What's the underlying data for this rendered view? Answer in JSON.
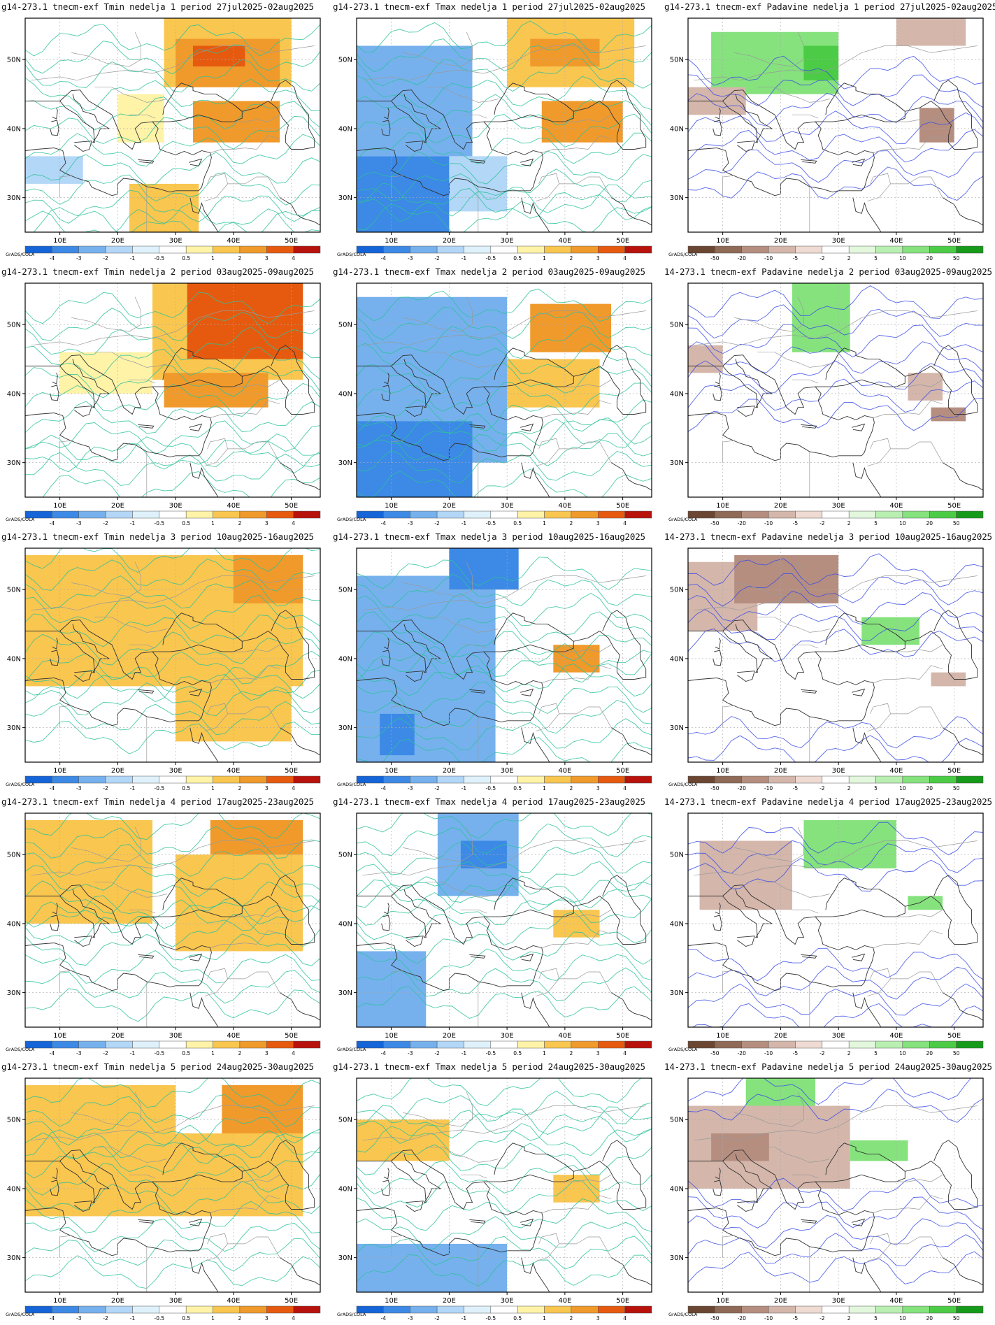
{
  "lat_labels": [
    "50N",
    "40N",
    "30N"
  ],
  "lon_labels": [
    "10E",
    "20E",
    "30E",
    "40E",
    "50E"
  ],
  "credit": "GrADS/COLA",
  "temp_scale": {
    "labels": [
      "-4",
      "-3",
      "-2",
      "-1",
      "-0.5",
      "0.5",
      "1",
      "2",
      "3",
      "4"
    ],
    "colors": [
      "#1565d8",
      "#3d89e6",
      "#76b1ee",
      "#b3d7f7",
      "#dff1fb",
      "#ffffff",
      "#fff3a8",
      "#f9c650",
      "#f09a2c",
      "#e65a0f",
      "#b8120d"
    ]
  },
  "precip_scale": {
    "labels": [
      "-50",
      "-20",
      "-10",
      "-5",
      "-2",
      "2",
      "5",
      "10",
      "20",
      "50"
    ],
    "colors": [
      "#6b4733",
      "#8e6a57",
      "#b58e80",
      "#d4b6ab",
      "#efdbd3",
      "#ffffff",
      "#e2f7dc",
      "#b9efb1",
      "#85e27d",
      "#4ccc46",
      "#169a1a"
    ]
  },
  "rows": [
    {
      "week": "1",
      "titles": [
        "g14-273.1 tnecm-exf Tmin nedelja 1 period 27jul2025-02aug2025",
        "g14-273.1 tnecm-exf Tmax nedelja 1 period 27jul2025-02aug2025",
        "g14-273.1 tnecm-exf Padavine nedelja 1 period 27jul2025-02aug2025"
      ]
    },
    {
      "week": "2",
      "titles": [
        "g14-273.1 tnecm-exf Tmin nedelja 2 period 03aug2025-09aug2025",
        "g14-273.1 tnecm-exf Tmax nedelja 2 period 03aug2025-09aug2025",
        "14-273.1 tnecm-exf Padavine nedelja 2 period 03aug2025-09aug2025"
      ]
    },
    {
      "week": "3",
      "titles": [
        "g14-273.1 tnecm-exf Tmin nedelja 3 period 10aug2025-16aug2025",
        "g14-273.1 tnecm-exf Tmax nedelja 3 period 10aug2025-16aug2025",
        "14-273.1 tnecm-exf Padavine nedelja 3 period 10aug2025-16aug2025"
      ]
    },
    {
      "week": "4",
      "titles": [
        "g14-273.1 tnecm-exf Tmin nedelja 4 period 17aug2025-23aug2025",
        "g14-273.1 tnecm-exf Tmax nedelja 4 period 17aug2025-23aug2025",
        "14-273.1 tnecm-exf Padavine nedelja 4 period 17aug2025-23aug2025"
      ]
    },
    {
      "week": "5",
      "titles": [
        "g14-273.1 tnecm-exf Tmin nedelja 5 period 24aug2025-30aug2025",
        "g14-273.1 tnecm-exf Tmax nedelja 5 period 24aug2025-30aug2025",
        "14-273.1 tnecm-exf Padavine nedelja 5 period 24aug2025-30aug2025"
      ]
    }
  ],
  "anomaly_regions": [
    [
      {
        "tmin": [
          {
            "c": 7,
            "lon": [
              28,
              50
            ],
            "lat": [
              46,
              56
            ]
          },
          {
            "c": 8,
            "lon": [
              30,
              48
            ],
            "lat": [
              46,
              53
            ]
          },
          {
            "c": 9,
            "lon": [
              33,
              42
            ],
            "lat": [
              49,
              52
            ]
          },
          {
            "c": 8,
            "lon": [
              33,
              48
            ],
            "lat": [
              38,
              44
            ]
          },
          {
            "c": 7,
            "lon": [
              22,
              34
            ],
            "lat": [
              25,
              32
            ]
          },
          {
            "c": 3,
            "lon": [
              4,
              14
            ],
            "lat": [
              32,
              36
            ]
          },
          {
            "c": 6,
            "lon": [
              20,
              28
            ],
            "lat": [
              38,
              45
            ]
          }
        ],
        "tmax": [
          {
            "c": 1,
            "lon": [
              4,
              20
            ],
            "lat": [
              25,
              36
            ]
          },
          {
            "c": 2,
            "lon": [
              4,
              24
            ],
            "lat": [
              36,
              52
            ]
          },
          {
            "c": 7,
            "lon": [
              30,
              52
            ],
            "lat": [
              46,
              56
            ]
          },
          {
            "c": 8,
            "lon": [
              34,
              46
            ],
            "lat": [
              49,
              53
            ]
          },
          {
            "c": 8,
            "lon": [
              36,
              50
            ],
            "lat": [
              38,
              44
            ]
          },
          {
            "c": 3,
            "lon": [
              20,
              30
            ],
            "lat": [
              28,
              36
            ]
          }
        ],
        "precip": [
          {
            "c": 8,
            "lon": [
              8,
              30
            ],
            "lat": [
              45,
              54
            ]
          },
          {
            "c": 9,
            "lon": [
              24,
              30
            ],
            "lat": [
              47,
              52
            ]
          },
          {
            "c": 3,
            "lon": [
              4,
              14
            ],
            "lat": [
              42,
              46
            ]
          },
          {
            "c": 2,
            "lon": [
              44,
              50
            ],
            "lat": [
              38,
              43
            ]
          },
          {
            "c": 3,
            "lon": [
              40,
              52
            ],
            "lat": [
              52,
              56
            ]
          }
        ]
      }
    ],
    [
      {
        "tmin": [
          {
            "c": 7,
            "lon": [
              26,
              52
            ],
            "lat": [
              42,
              56
            ]
          },
          {
            "c": 9,
            "lon": [
              32,
              52
            ],
            "lat": [
              45,
              56
            ]
          },
          {
            "c": 8,
            "lon": [
              28,
              46
            ],
            "lat": [
              38,
              43
            ]
          },
          {
            "c": 6,
            "lon": [
              10,
              26
            ],
            "lat": [
              40,
              46
            ]
          }
        ],
        "tmax": [
          {
            "c": 2,
            "lon": [
              4,
              30
            ],
            "lat": [
              30,
              54
            ]
          },
          {
            "c": 1,
            "lon": [
              4,
              24
            ],
            "lat": [
              25,
              36
            ]
          },
          {
            "c": 8,
            "lon": [
              34,
              48
            ],
            "lat": [
              46,
              53
            ]
          },
          {
            "c": 7,
            "lon": [
              30,
              46
            ],
            "lat": [
              38,
              45
            ]
          }
        ],
        "precip": [
          {
            "c": 8,
            "lon": [
              22,
              32
            ],
            "lat": [
              46,
              56
            ]
          },
          {
            "c": 3,
            "lon": [
              4,
              10
            ],
            "lat": [
              43,
              47
            ]
          },
          {
            "c": 3,
            "lon": [
              42,
              48
            ],
            "lat": [
              39,
              43
            ]
          },
          {
            "c": 2,
            "lon": [
              46,
              52
            ],
            "lat": [
              36,
              38
            ]
          }
        ]
      }
    ],
    [
      {
        "tmin": [
          {
            "c": 7,
            "lon": [
              4,
              52
            ],
            "lat": [
              36,
              55
            ]
          },
          {
            "c": 7,
            "lon": [
              30,
              50
            ],
            "lat": [
              28,
              36
            ]
          },
          {
            "c": 8,
            "lon": [
              40,
              52
            ],
            "lat": [
              48,
              55
            ]
          }
        ],
        "tmax": [
          {
            "c": 2,
            "lon": [
              4,
              28
            ],
            "lat": [
              25,
              52
            ]
          },
          {
            "c": 1,
            "lon": [
              8,
              14
            ],
            "lat": [
              26,
              32
            ]
          },
          {
            "c": 1,
            "lon": [
              20,
              32
            ],
            "lat": [
              50,
              56
            ]
          },
          {
            "c": 8,
            "lon": [
              38,
              46
            ],
            "lat": [
              38,
              42
            ]
          }
        ],
        "precip": [
          {
            "c": 3,
            "lon": [
              4,
              16
            ],
            "lat": [
              44,
              54
            ]
          },
          {
            "c": 2,
            "lon": [
              12,
              30
            ],
            "lat": [
              48,
              55
            ]
          },
          {
            "c": 8,
            "lon": [
              34,
              44
            ],
            "lat": [
              42,
              46
            ]
          },
          {
            "c": 3,
            "lon": [
              46,
              52
            ],
            "lat": [
              36,
              38
            ]
          }
        ]
      }
    ],
    [
      {
        "tmin": [
          {
            "c": 7,
            "lon": [
              4,
              26
            ],
            "lat": [
              40,
              55
            ]
          },
          {
            "c": 8,
            "lon": [
              36,
              52
            ],
            "lat": [
              46,
              55
            ]
          },
          {
            "c": 7,
            "lon": [
              30,
              52
            ],
            "lat": [
              36,
              50
            ]
          }
        ],
        "tmax": [
          {
            "c": 2,
            "lon": [
              18,
              32
            ],
            "lat": [
              44,
              56
            ]
          },
          {
            "c": 1,
            "lon": [
              22,
              30
            ],
            "lat": [
              48,
              52
            ]
          },
          {
            "c": 2,
            "lon": [
              4,
              16
            ],
            "lat": [
              25,
              36
            ]
          },
          {
            "c": 7,
            "lon": [
              38,
              46
            ],
            "lat": [
              38,
              42
            ]
          }
        ],
        "precip": [
          {
            "c": 3,
            "lon": [
              6,
              22
            ],
            "lat": [
              42,
              52
            ]
          },
          {
            "c": 8,
            "lon": [
              24,
              40
            ],
            "lat": [
              48,
              55
            ]
          },
          {
            "c": 8,
            "lon": [
              42,
              48
            ],
            "lat": [
              42,
              44
            ]
          }
        ]
      }
    ],
    [
      {
        "tmin": [
          {
            "c": 8,
            "lon": [
              4,
              22
            ],
            "lat": [
              44,
              52
            ]
          },
          {
            "c": 7,
            "lon": [
              4,
              30
            ],
            "lat": [
              36,
              55
            ]
          },
          {
            "c": 8,
            "lon": [
              38,
              52
            ],
            "lat": [
              46,
              55
            ]
          },
          {
            "c": 7,
            "lon": [
              30,
              52
            ],
            "lat": [
              36,
              48
            ]
          }
        ],
        "tmax": [
          {
            "c": 7,
            "lon": [
              4,
              20
            ],
            "lat": [
              44,
              50
            ]
          },
          {
            "c": 2,
            "lon": [
              4,
              30
            ],
            "lat": [
              25,
              32
            ]
          },
          {
            "c": 7,
            "lon": [
              38,
              46
            ],
            "lat": [
              38,
              42
            ]
          }
        ],
        "precip": [
          {
            "c": 3,
            "lon": [
              4,
              32
            ],
            "lat": [
              40,
              52
            ]
          },
          {
            "c": 2,
            "lon": [
              8,
              18
            ],
            "lat": [
              44,
              48
            ]
          },
          {
            "c": 8,
            "lon": [
              14,
              26
            ],
            "lat": [
              52,
              56
            ]
          },
          {
            "c": 8,
            "lon": [
              32,
              42
            ],
            "lat": [
              44,
              47
            ]
          }
        ]
      }
    ]
  ]
}
